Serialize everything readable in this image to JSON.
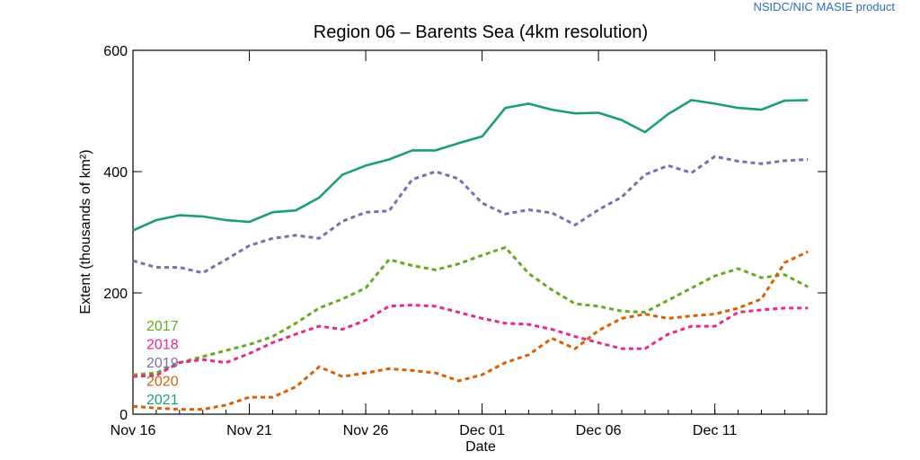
{
  "credit": "NSIDC/NIC MASIE product",
  "chart_data": {
    "type": "line",
    "title": "Region 06 – Barents Sea (4km resolution)",
    "xlabel": "Date",
    "ylabel": "Extent (thousands of km²)",
    "ylim": [
      0,
      600
    ],
    "yticks": [
      0,
      200,
      400,
      600
    ],
    "xlim": [
      0,
      29.8
    ],
    "xticks": [
      {
        "x": 0,
        "label": "Nov 16"
      },
      {
        "x": 5,
        "label": "Nov 21"
      },
      {
        "x": 10,
        "label": "Nov 26"
      },
      {
        "x": 15,
        "label": "Dec 01"
      },
      {
        "x": 20,
        "label": "Dec 06"
      },
      {
        "x": 25,
        "label": "Dec 11"
      }
    ],
    "x": [
      0,
      1,
      2,
      3,
      4,
      5,
      6,
      7,
      8,
      9,
      10,
      11,
      12,
      13,
      14,
      15,
      16,
      17,
      18,
      19,
      20,
      21,
      22,
      23,
      24,
      25,
      26,
      27,
      28,
      29
    ],
    "series": [
      {
        "name": "2017",
        "color": "#66aa22",
        "dashed": true,
        "values": [
          65,
          68,
          85,
          95,
          105,
          115,
          128,
          150,
          175,
          190,
          208,
          255,
          245,
          238,
          248,
          262,
          275,
          232,
          205,
          182,
          178,
          170,
          168,
          188,
          208,
          228,
          240,
          225,
          230,
          210
        ]
      },
      {
        "name": "2018",
        "color": "#e7298a",
        "dashed": true,
        "values": [
          62,
          64,
          85,
          90,
          85,
          100,
          118,
          132,
          145,
          140,
          155,
          178,
          180,
          178,
          168,
          158,
          150,
          148,
          140,
          128,
          118,
          108,
          108,
          132,
          145,
          145,
          168,
          172,
          175,
          175
        ]
      },
      {
        "name": "2019",
        "color": "#7570b3",
        "dashed": true,
        "values": [
          253,
          242,
          242,
          233,
          255,
          278,
          290,
          295,
          290,
          318,
          333,
          335,
          387,
          400,
          388,
          348,
          330,
          337,
          332,
          312,
          337,
          358,
          395,
          410,
          398,
          425,
          417,
          413,
          418,
          420
        ]
      },
      {
        "name": "2020",
        "color": "#d95f02",
        "dashed": true,
        "values": [
          13,
          10,
          8,
          8,
          15,
          28,
          28,
          45,
          78,
          62,
          68,
          75,
          72,
          68,
          55,
          65,
          85,
          98,
          125,
          108,
          138,
          158,
          165,
          158,
          162,
          165,
          175,
          190,
          250,
          268
        ]
      },
      {
        "name": "2021",
        "color": "#1b9e77",
        "dashed": false,
        "values": [
          303,
          320,
          328,
          326,
          320,
          317,
          333,
          336,
          357,
          395,
          410,
          420,
          435,
          435,
          447,
          458,
          505,
          512,
          502,
          496,
          497,
          485,
          465,
          495,
          518,
          512,
          505,
          502,
          517,
          518
        ]
      }
    ]
  }
}
